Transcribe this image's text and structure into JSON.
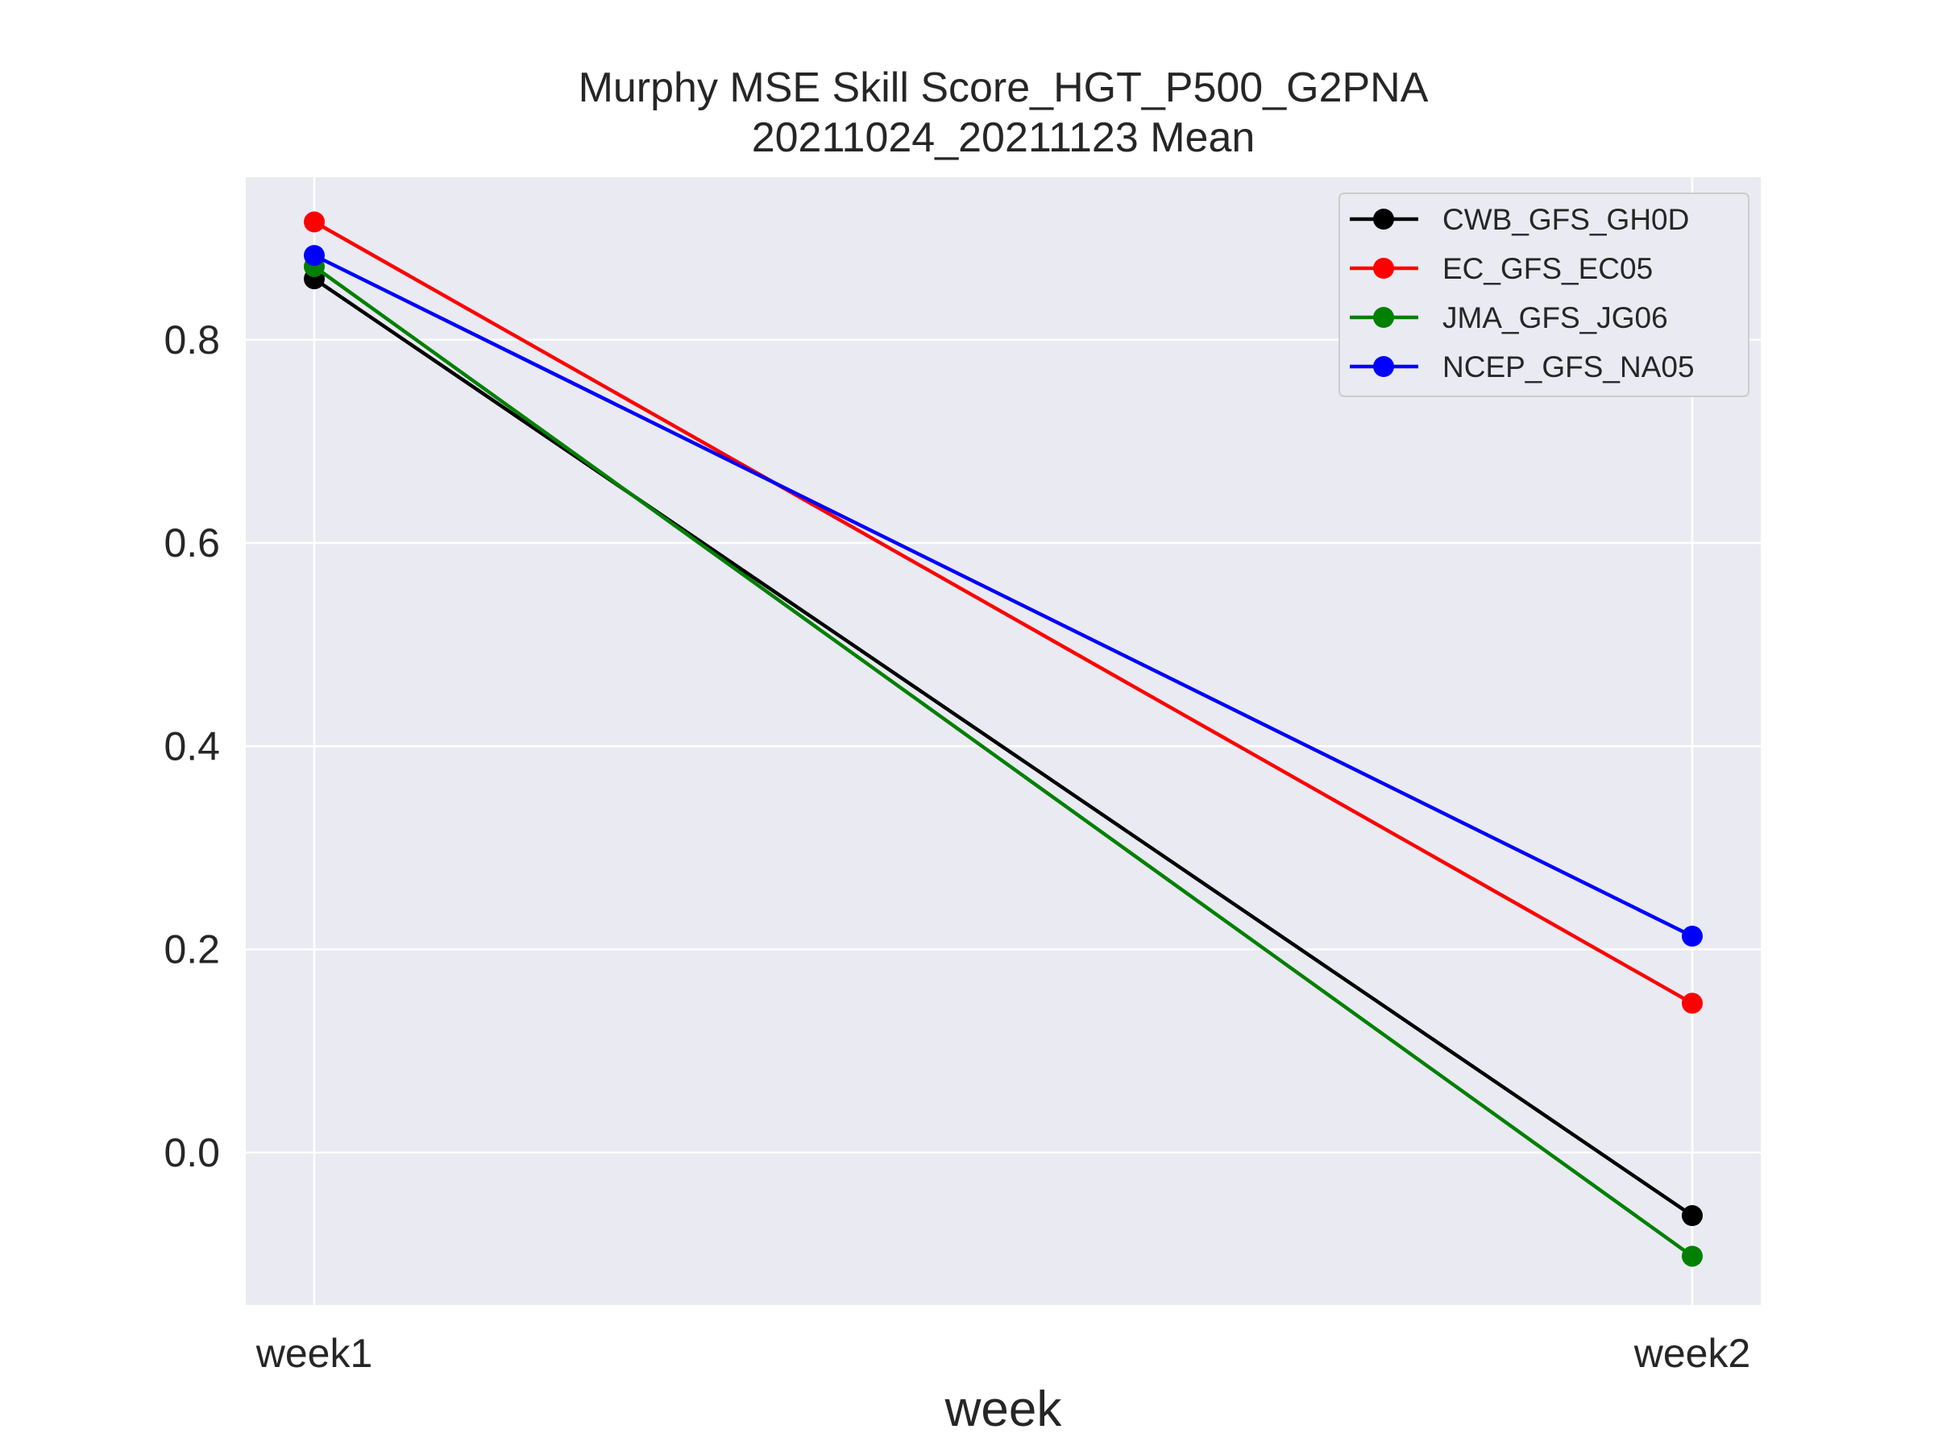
{
  "chart_data": {
    "type": "line",
    "title": "Murphy MSE Skill Score_HGT_P500_G2PNA",
    "subtitle": "20211024_20211123 Mean",
    "xlabel": "week",
    "ylabel": "",
    "categories": [
      "week1",
      "week2"
    ],
    "ylim": [
      -0.15,
      0.96
    ],
    "yticks": [
      "0.0",
      "0.2",
      "0.4",
      "0.6",
      "0.8"
    ],
    "ytick_values": [
      0.0,
      0.2,
      0.4,
      0.6,
      0.8
    ],
    "grid": true,
    "legend_position": "top-right",
    "background_color": "#eaeaf2",
    "series": [
      {
        "name": "CWB_GFS_GH0D",
        "color": "#000000",
        "values": [
          0.86,
          -0.062
        ]
      },
      {
        "name": "EC_GFS_EC05",
        "color": "#ff0000",
        "values": [
          0.916,
          0.147
        ]
      },
      {
        "name": "JMA_GFS_JG06",
        "color": "#008000",
        "values": [
          0.872,
          -0.102
        ]
      },
      {
        "name": "NCEP_GFS_NA05",
        "color": "#0000ff",
        "values": [
          0.883,
          0.213
        ]
      }
    ]
  }
}
